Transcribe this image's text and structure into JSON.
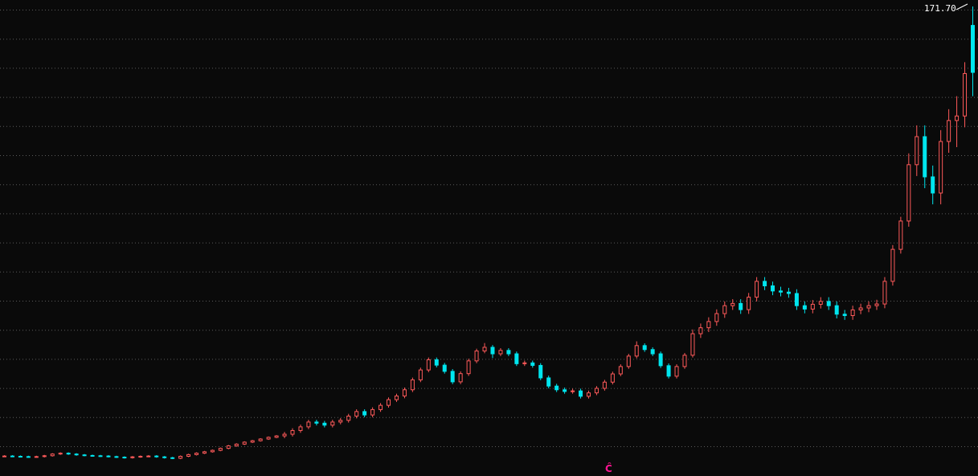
{
  "chart_data": {
    "type": "candlestick",
    "max_label": "171.70",
    "marker_label": "Ĉ",
    "grid": true,
    "colors": {
      "up": "#ff5a5a",
      "down": "#00e5ee",
      "grid": "#5a5a5a",
      "background": "#0a0a0a",
      "marker": "#ff1493"
    },
    "ohlc": [
      [
        12.9,
        13.2,
        12.6,
        12.9
      ],
      [
        12.9,
        13.2,
        12.5,
        12.8
      ],
      [
        12.8,
        13.1,
        12.4,
        12.7
      ],
      [
        12.7,
        13.0,
        12.3,
        12.6
      ],
      [
        12.6,
        13.0,
        12.3,
        12.7
      ],
      [
        12.7,
        13.3,
        12.4,
        13.0
      ],
      [
        13.0,
        13.9,
        12.7,
        13.6
      ],
      [
        13.6,
        14.2,
        13.3,
        13.9
      ],
      [
        13.9,
        14.2,
        13.3,
        13.6
      ],
      [
        13.6,
        13.9,
        13.0,
        13.3
      ],
      [
        13.3,
        13.6,
        12.8,
        13.1
      ],
      [
        13.1,
        13.4,
        12.7,
        13.0
      ],
      [
        13.0,
        13.3,
        12.6,
        12.9
      ],
      [
        12.9,
        13.2,
        12.4,
        12.7
      ],
      [
        12.7,
        13.0,
        12.2,
        12.5
      ],
      [
        12.5,
        12.8,
        12.0,
        12.3
      ],
      [
        12.3,
        12.9,
        12.0,
        12.6
      ],
      [
        12.6,
        13.1,
        12.3,
        12.8
      ],
      [
        12.8,
        13.2,
        12.5,
        12.9
      ],
      [
        12.9,
        13.2,
        12.3,
        12.6
      ],
      [
        12.6,
        12.9,
        12.0,
        12.3
      ],
      [
        12.3,
        12.6,
        11.8,
        12.1
      ],
      [
        12.1,
        13.1,
        11.8,
        12.8
      ],
      [
        12.8,
        13.7,
        12.5,
        13.4
      ],
      [
        13.4,
        14.2,
        13.1,
        13.9
      ],
      [
        13.9,
        14.7,
        13.6,
        14.4
      ],
      [
        14.4,
        15.2,
        14.1,
        14.9
      ],
      [
        14.9,
        15.9,
        14.6,
        15.6
      ],
      [
        15.6,
        16.8,
        15.3,
        16.5
      ],
      [
        16.5,
        17.4,
        16.2,
        17.1
      ],
      [
        17.1,
        18.1,
        16.8,
        17.8
      ],
      [
        17.8,
        18.6,
        17.5,
        18.3
      ],
      [
        18.3,
        19.2,
        18.0,
        18.9
      ],
      [
        18.9,
        19.8,
        18.6,
        19.5
      ],
      [
        19.5,
        20.3,
        19.2,
        20.0
      ],
      [
        20.0,
        21.4,
        19.2,
        20.6
      ],
      [
        20.6,
        22.7,
        19.8,
        21.9
      ],
      [
        21.9,
        24.0,
        21.1,
        23.2
      ],
      [
        23.2,
        25.7,
        22.4,
        24.9
      ],
      [
        24.9,
        25.7,
        23.7,
        24.5
      ],
      [
        24.5,
        25.3,
        23.0,
        23.8
      ],
      [
        23.8,
        25.7,
        23.0,
        24.9
      ],
      [
        24.9,
        26.3,
        24.1,
        25.5
      ],
      [
        25.5,
        27.8,
        24.7,
        27.0
      ],
      [
        27.0,
        29.4,
        26.2,
        28.6
      ],
      [
        28.6,
        29.4,
        26.6,
        27.4
      ],
      [
        27.4,
        30.1,
        26.6,
        29.3
      ],
      [
        29.3,
        31.6,
        28.5,
        30.8
      ],
      [
        30.8,
        33.6,
        30.0,
        32.8
      ],
      [
        32.8,
        34.9,
        32.0,
        34.1
      ],
      [
        34.1,
        37.1,
        33.3,
        36.3
      ],
      [
        36.3,
        40.6,
        35.5,
        39.8
      ],
      [
        39.8,
        44.1,
        39.0,
        43.3
      ],
      [
        43.3,
        47.7,
        42.5,
        46.9
      ],
      [
        46.9,
        47.7,
        44.2,
        45.0
      ],
      [
        45.0,
        45.8,
        42.0,
        42.8
      ],
      [
        42.8,
        43.6,
        38.3,
        39.1
      ],
      [
        39.1,
        42.8,
        38.3,
        42.0
      ],
      [
        42.0,
        47.3,
        41.2,
        46.5
      ],
      [
        46.5,
        50.8,
        45.7,
        50.0
      ],
      [
        50.0,
        52.8,
        49.2,
        51.3
      ],
      [
        51.3,
        52.1,
        47.5,
        49.0
      ],
      [
        49.0,
        51.0,
        48.2,
        50.2
      ],
      [
        50.2,
        51.0,
        48.2,
        49.0
      ],
      [
        49.0,
        49.8,
        44.7,
        45.5
      ],
      [
        45.5,
        46.6,
        44.7,
        45.8
      ],
      [
        45.8,
        46.6,
        44.1,
        44.9
      ],
      [
        44.9,
        45.7,
        39.7,
        40.5
      ],
      [
        40.5,
        41.3,
        36.8,
        37.6
      ],
      [
        37.6,
        38.4,
        35.5,
        36.3
      ],
      [
        36.3,
        37.1,
        34.9,
        35.7
      ],
      [
        35.7,
        36.7,
        34.9,
        35.9
      ],
      [
        35.9,
        36.7,
        33.2,
        34.0
      ],
      [
        34.0,
        36.0,
        33.2,
        35.2
      ],
      [
        35.2,
        37.6,
        34.4,
        36.8
      ],
      [
        36.8,
        39.8,
        36.0,
        39.0
      ],
      [
        39.0,
        42.7,
        38.2,
        41.9
      ],
      [
        41.9,
        45.3,
        41.1,
        44.5
      ],
      [
        44.5,
        49.0,
        43.7,
        48.2
      ],
      [
        48.2,
        53.4,
        47.4,
        51.9
      ],
      [
        51.9,
        52.7,
        49.7,
        50.5
      ],
      [
        50.5,
        51.3,
        48.2,
        49.0
      ],
      [
        49.0,
        49.8,
        44.0,
        44.8
      ],
      [
        44.8,
        45.6,
        40.3,
        41.1
      ],
      [
        41.1,
        45.3,
        40.3,
        44.5
      ],
      [
        44.5,
        49.3,
        43.7,
        48.5
      ],
      [
        48.5,
        57.6,
        47.7,
        56.1
      ],
      [
        56.1,
        59.7,
        54.6,
        58.2
      ],
      [
        58.2,
        61.9,
        56.7,
        60.4
      ],
      [
        60.4,
        64.7,
        58.9,
        63.2
      ],
      [
        63.2,
        67.5,
        61.7,
        66.0
      ],
      [
        66.0,
        68.3,
        64.5,
        66.8
      ],
      [
        66.8,
        68.3,
        63.1,
        64.6
      ],
      [
        64.6,
        70.5,
        63.1,
        69.0
      ],
      [
        69.0,
        76.1,
        67.5,
        74.6
      ],
      [
        74.6,
        76.1,
        71.5,
        73.0
      ],
      [
        73.0,
        74.5,
        69.7,
        71.2
      ],
      [
        71.2,
        72.7,
        69.3,
        70.8
      ],
      [
        70.8,
        72.3,
        68.8,
        70.3
      ],
      [
        70.3,
        71.8,
        64.5,
        66.0
      ],
      [
        66.0,
        67.5,
        63.3,
        64.8
      ],
      [
        64.8,
        68.0,
        63.3,
        66.5
      ],
      [
        66.5,
        69.0,
        65.0,
        67.5
      ],
      [
        67.5,
        69.0,
        64.5,
        66.0
      ],
      [
        66.0,
        67.5,
        61.5,
        63.0
      ],
      [
        63.0,
        64.5,
        61.0,
        62.5
      ],
      [
        62.5,
        66.0,
        61.0,
        64.5
      ],
      [
        64.5,
        66.7,
        63.0,
        65.2
      ],
      [
        65.2,
        67.5,
        63.7,
        66.0
      ],
      [
        66.0,
        68.1,
        64.5,
        66.6
      ],
      [
        66.6,
        76.1,
        65.1,
        74.6
      ],
      [
        74.6,
        87.4,
        73.1,
        85.9
      ],
      [
        85.9,
        97.4,
        84.4,
        95.9
      ],
      [
        95.9,
        119.8,
        93.9,
        115.8
      ],
      [
        115.8,
        129.7,
        111.8,
        125.7
      ],
      [
        125.7,
        129.7,
        107.5,
        111.5
      ],
      [
        111.5,
        115.5,
        101.8,
        105.8
      ],
      [
        105.8,
        128.0,
        101.8,
        124.0
      ],
      [
        124.0,
        135.4,
        120.0,
        131.4
      ],
      [
        131.4,
        140.0,
        122.0,
        133.0
      ],
      [
        133.0,
        152.0,
        129.0,
        148.0
      ],
      [
        165.0,
        171.7,
        140.0,
        148.4
      ]
    ]
  }
}
